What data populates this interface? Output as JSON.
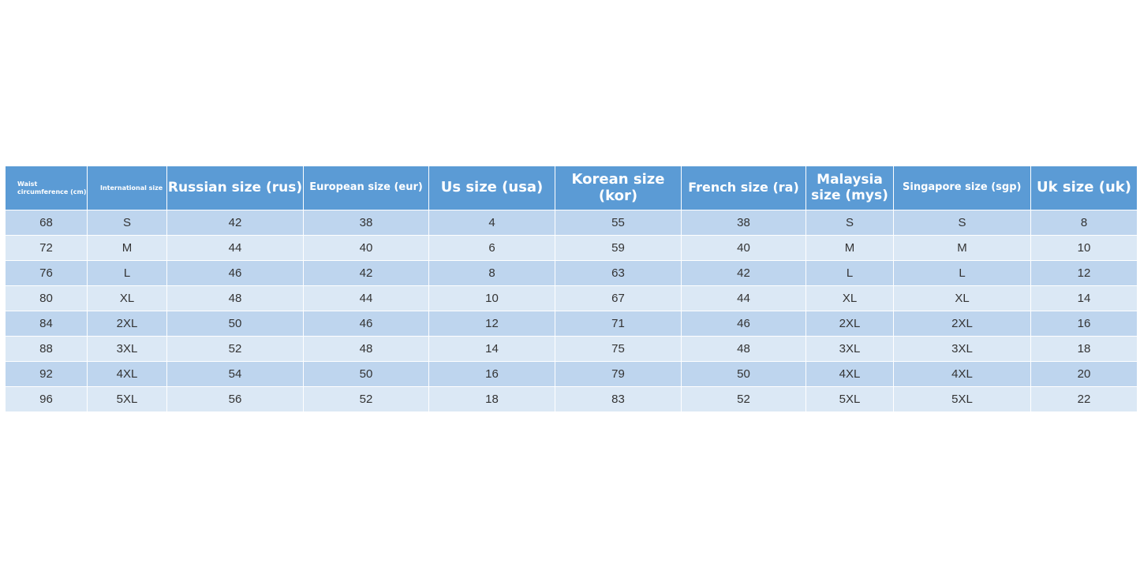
{
  "table": {
    "header": [
      "Waist circumference (cm)",
      "International size",
      "Russian size (rus)",
      "European size (eur)",
      "Us size (usa)",
      "Korean size (kor)",
      "French size (ra)",
      "Malaysia size (mys)",
      "Singapore size (sgp)",
      "Uk size (uk)"
    ],
    "rows": [
      [
        68,
        "S",
        42,
        38,
        4,
        55,
        38,
        "S",
        "S",
        8
      ],
      [
        72,
        "M",
        44,
        40,
        6,
        59,
        40,
        "M",
        "M",
        10
      ],
      [
        76,
        "L",
        46,
        42,
        8,
        63,
        42,
        "L",
        "L",
        12
      ],
      [
        80,
        "XL",
        48,
        44,
        10,
        67,
        44,
        "XL",
        "XL",
        14
      ],
      [
        84,
        "2XL",
        50,
        46,
        12,
        71,
        46,
        "2XL",
        "2XL",
        16
      ],
      [
        88,
        "3XL",
        52,
        48,
        14,
        75,
        48,
        "3XL",
        "3XL",
        18
      ],
      [
        92,
        "4XL",
        54,
        50,
        16,
        79,
        50,
        "4XL",
        "4XL",
        20
      ],
      [
        96,
        "5XL",
        56,
        52,
        18,
        83,
        52,
        "5XL",
        "5XL",
        22
      ]
    ]
  }
}
